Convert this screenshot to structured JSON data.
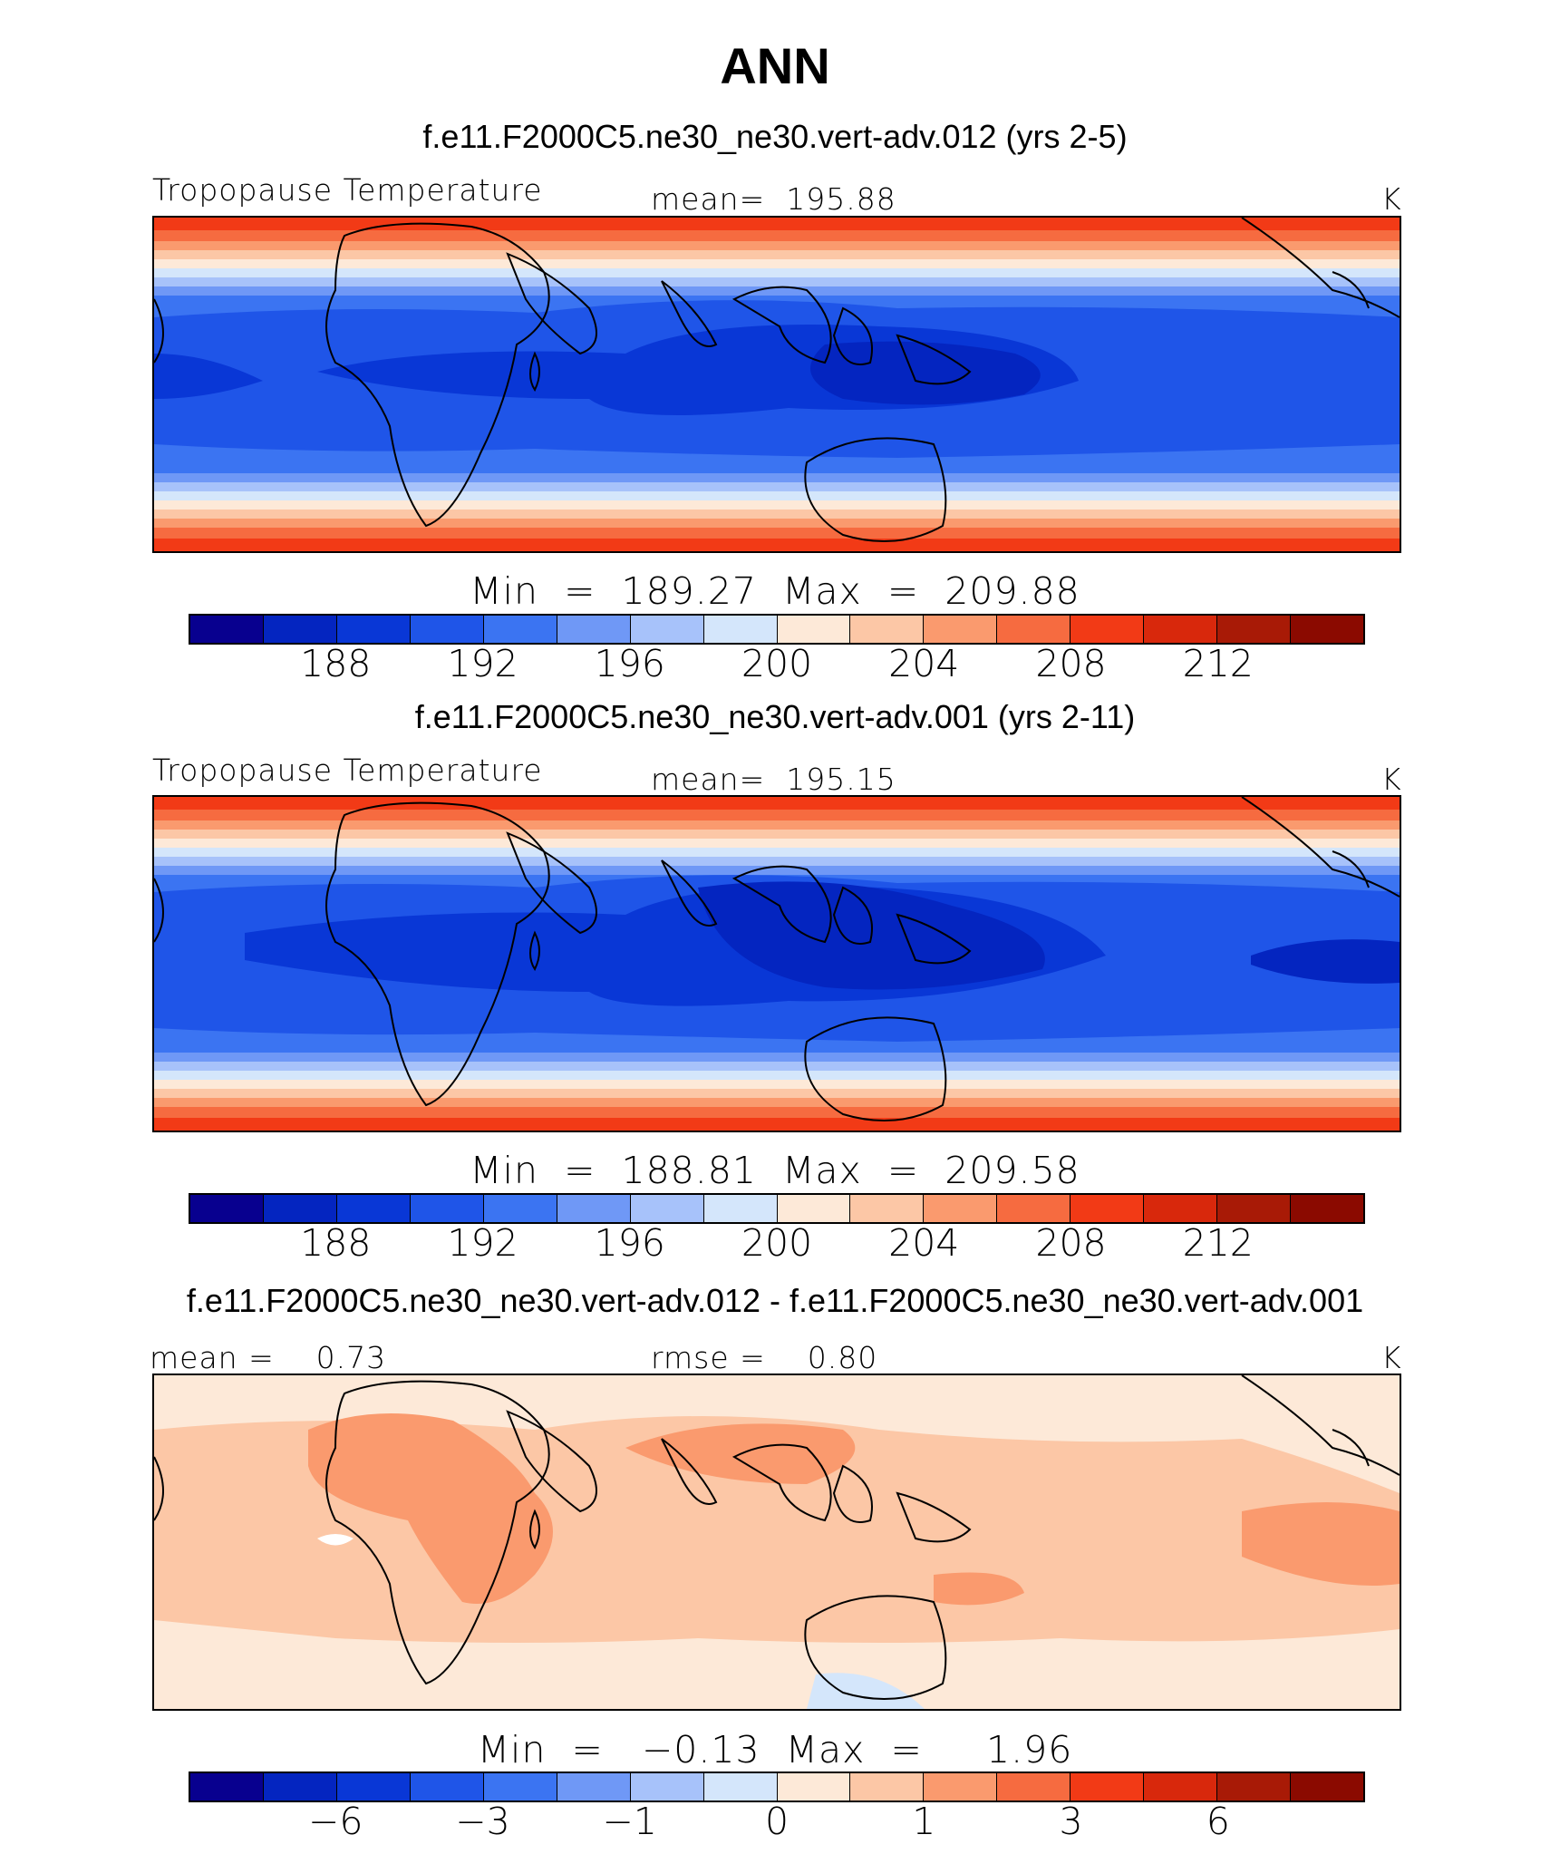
{
  "figure": {
    "title": "ANN",
    "colors": {
      "abs_palette": [
        "#08008f",
        "#0425c0",
        "#0937d6",
        "#1f55e8",
        "#3b74f2",
        "#6f98f6",
        "#a7c2fa",
        "#d4e6fb",
        "#fde9d8",
        "#fcc7a6",
        "#fa9a6e",
        "#f66b40",
        "#f23a16",
        "#d8280c",
        "#a81a06",
        "#8b0a00"
      ],
      "diff_palette": [
        "#08008f",
        "#0425c0",
        "#0937d6",
        "#1f55e8",
        "#3b74f2",
        "#6f98f6",
        "#a7c2fa",
        "#d4e6fb",
        "#fde9d8",
        "#fcc7a6",
        "#fa9a6e",
        "#f66b40",
        "#f23a16",
        "#d8280c",
        "#a81a06",
        "#8b0a00"
      ]
    }
  },
  "chart_data": [
    {
      "type": "heatmap",
      "case_title": "f.e11.F2000C5.ne30_ne30.vert-adv.012 (yrs 2-5)",
      "variable": "Tropopause Temperature",
      "mean_label": "mean=  195.88",
      "units": "K",
      "min": 189.27,
      "max": 209.88,
      "stats_label": "Min  =  189.27  Max  =  209.88",
      "colorbar_levels": [
        186,
        188,
        190,
        192,
        194,
        196,
        198,
        200,
        202,
        204,
        206,
        208,
        210,
        212,
        214
      ],
      "colorbar_ticks": [
        "188",
        "192",
        "196",
        "200",
        "204",
        "208",
        "212"
      ]
    },
    {
      "type": "heatmap",
      "case_title": "f.e11.F2000C5.ne30_ne30.vert-adv.001 (yrs 2-11)",
      "variable": "Tropopause Temperature",
      "mean_label": "mean=  195.15",
      "units": "K",
      "min": 188.81,
      "max": 209.58,
      "stats_label": "Min  =  188.81  Max  =  209.58",
      "colorbar_levels": [
        186,
        188,
        190,
        192,
        194,
        196,
        198,
        200,
        202,
        204,
        206,
        208,
        210,
        212,
        214
      ],
      "colorbar_ticks": [
        "188",
        "192",
        "196",
        "200",
        "204",
        "208",
        "212"
      ]
    },
    {
      "type": "heatmap",
      "case_title": "f.e11.F2000C5.ne30_ne30.vert-adv.012 - f.e11.F2000C5.ne30_ne30.vert-adv.001",
      "mean_label": "mean =    0.73",
      "rmse_label": "rmse =    0.80",
      "units": "K",
      "min": -0.13,
      "max": 1.96,
      "stats_label": "Min  =   −0.13  Max  =     1.96",
      "colorbar_levels": [
        -8,
        -6,
        -4,
        -3,
        -2,
        -1,
        -0.5,
        0,
        0.5,
        1,
        2,
        3,
        4,
        6,
        8
      ],
      "colorbar_ticks": [
        "−6",
        "−3",
        "−1",
        "0",
        "1",
        "3",
        "6"
      ]
    }
  ]
}
